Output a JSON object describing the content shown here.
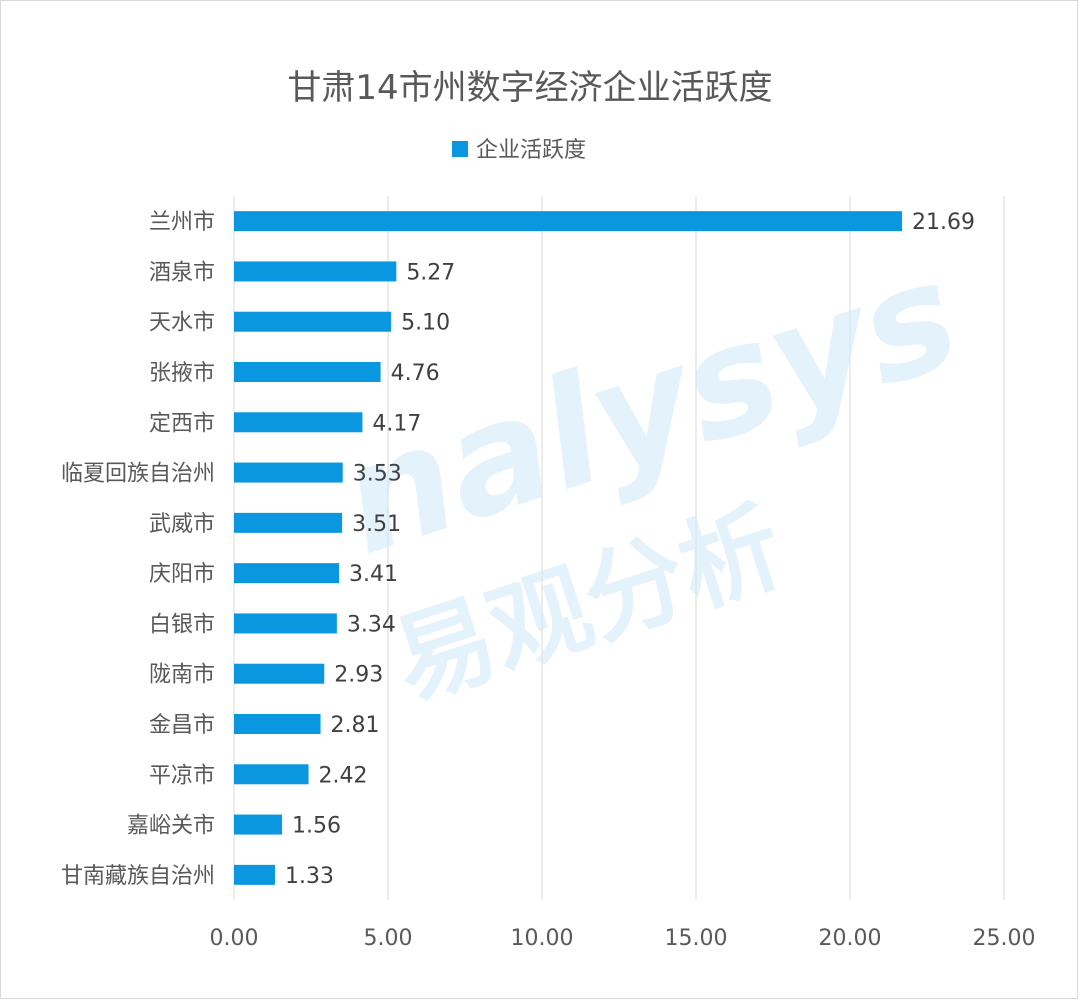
{
  "chart_data": {
    "type": "bar",
    "orientation": "horizontal",
    "title": "甘肃14市州数字经济企业活跃度",
    "legend": {
      "position": "top",
      "entries": [
        "企业活跃度"
      ]
    },
    "categories": [
      "兰州市",
      "酒泉市",
      "天水市",
      "张掖市",
      "定西市",
      "临夏回族自治州",
      "武威市",
      "庆阳市",
      "白银市",
      "陇南市",
      "金昌市",
      "平凉市",
      "嘉峪关市",
      "甘南藏族自治州"
    ],
    "series": [
      {
        "name": "企业活跃度",
        "values": [
          21.69,
          5.27,
          5.1,
          4.76,
          4.17,
          3.53,
          3.51,
          3.41,
          3.34,
          2.93,
          2.81,
          2.42,
          1.56,
          1.33
        ],
        "color": "#0b97e0"
      }
    ],
    "data_labels": [
      "21.69",
      "5.27",
      "5.10",
      "4.76",
      "4.17",
      "3.53",
      "3.51",
      "3.41",
      "3.34",
      "2.93",
      "2.81",
      "2.42",
      "1.56",
      "1.33"
    ],
    "xlim": [
      0,
      25
    ],
    "x_ticks": [
      0,
      5,
      10,
      15,
      20,
      25
    ],
    "x_tick_labels": [
      "0.00",
      "5.00",
      "10.00",
      "15.00",
      "20.00",
      "25.00"
    ],
    "grid": "vertical",
    "xlabel": "",
    "ylabel": ""
  },
  "watermark": {
    "latin": "nalysys",
    "cn": "易观分析"
  },
  "colors": {
    "bar": "#0b97e0",
    "grid": "#d9d9d9",
    "text": "#595959"
  }
}
